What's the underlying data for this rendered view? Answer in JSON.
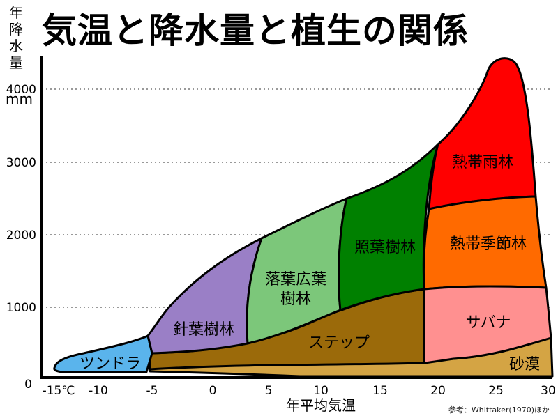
{
  "title": "気温と降水量と植生の関係",
  "y_axis": {
    "label_chars": [
      "年",
      "降",
      "水",
      "量"
    ],
    "unit": "mm",
    "ticks": [
      "4000",
      "3000",
      "2000",
      "1000",
      "0"
    ]
  },
  "x_axis": {
    "label": "年平均気温",
    "ticks": [
      "-15℃",
      "-10",
      "-5",
      "0",
      "5",
      "10",
      "15",
      "20",
      "25",
      "30"
    ]
  },
  "credit": "参考：Whittaker(1970)ほか",
  "regions": [
    {
      "name": "tundra",
      "label": [
        "ツンドラ"
      ],
      "color": "#5ab4ec"
    },
    {
      "name": "coniferous-forest",
      "label": [
        "針葉樹林"
      ],
      "color": "#9a7fc6"
    },
    {
      "name": "deciduous-forest",
      "label": [
        "落葉広葉",
        "樹林"
      ],
      "color": "#7cc77a"
    },
    {
      "name": "evergreen-forest",
      "label": [
        "照葉樹林"
      ],
      "color": "#008000"
    },
    {
      "name": "tropical-rainforest",
      "label": [
        "熱帯雨林"
      ],
      "color": "#ff0000"
    },
    {
      "name": "tropical-seasonal-forest",
      "label": [
        "熱帯季節林"
      ],
      "color": "#ff6a00"
    },
    {
      "name": "savanna",
      "label": [
        "サバナ"
      ],
      "color": "#ff9090"
    },
    {
      "name": "steppe",
      "label": [
        "ステップ"
      ],
      "color": "#9b6a0a"
    },
    {
      "name": "desert",
      "label": [
        "砂漠"
      ],
      "color": "#d4a444"
    }
  ]
}
